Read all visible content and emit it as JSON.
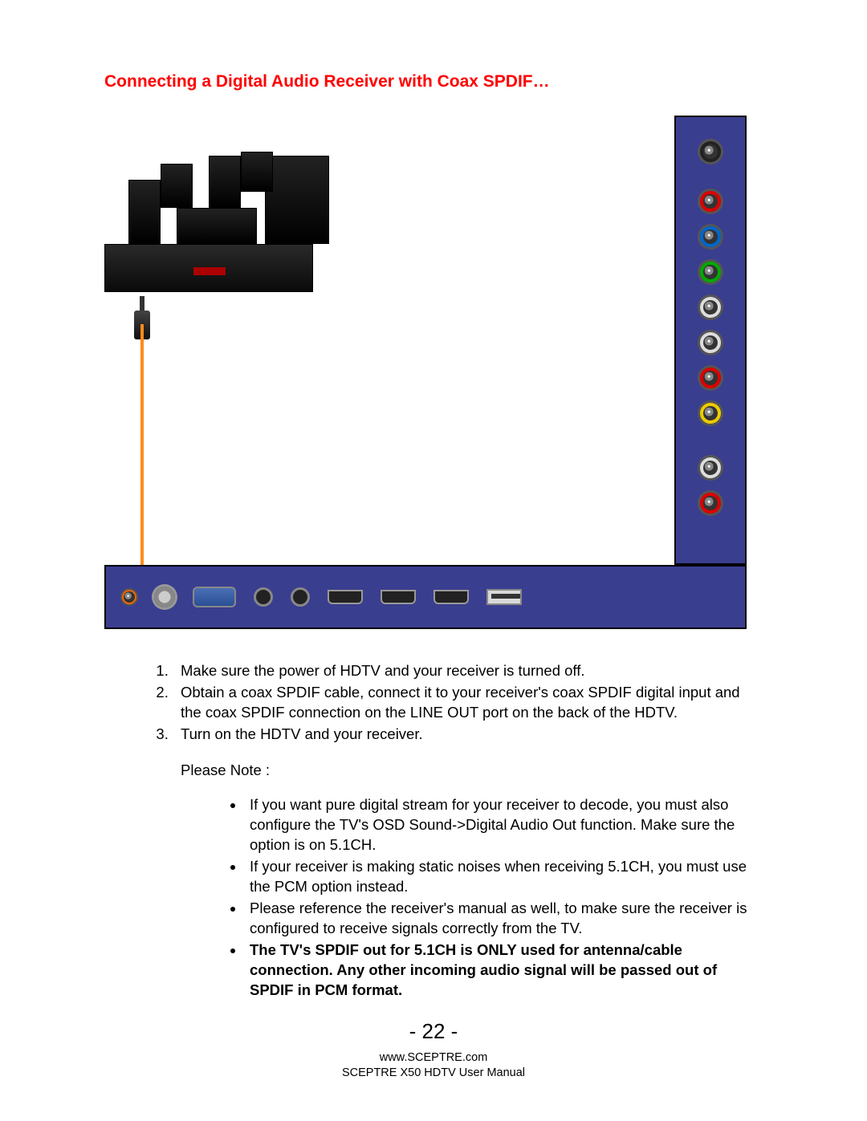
{
  "title": "Connecting a Digital Audio Receiver with Coax SPDIF…",
  "diagram": {
    "side_ports": [
      {
        "type": "jack",
        "color": "black"
      },
      {
        "type": "jack",
        "color": "red"
      },
      {
        "type": "jack",
        "color": "blue"
      },
      {
        "type": "jack",
        "color": "green"
      },
      {
        "type": "jack",
        "color": "white"
      },
      {
        "type": "jack",
        "color": "white"
      },
      {
        "type": "jack",
        "color": "red"
      },
      {
        "type": "jack",
        "color": "yellow"
      },
      {
        "type": "jack",
        "color": "white"
      },
      {
        "type": "jack",
        "color": "red"
      }
    ],
    "bottom_ports": [
      {
        "type": "jack-small-orange"
      },
      {
        "type": "coax"
      },
      {
        "type": "vga"
      },
      {
        "type": "svideo"
      },
      {
        "type": "svideo"
      },
      {
        "type": "hdmi"
      },
      {
        "type": "hdmi"
      },
      {
        "type": "hdmi"
      },
      {
        "type": "usb"
      }
    ],
    "cable_color": "#ff8c1a",
    "panel_color": "#3a3e8f"
  },
  "steps": [
    "Make sure the power of HDTV and your receiver is turned off.",
    "Obtain a coax SPDIF cable, connect it to your receiver's coax SPDIF digital input and the coax SPDIF connection on the LINE OUT port on the back of the HDTV.",
    "Turn on the HDTV and your receiver."
  ],
  "note_label": "Please Note :",
  "notes": [
    {
      "text": "If you want pure digital stream for your receiver to decode, you must also configure the TV's OSD Sound->Digital Audio Out function. Make sure the option is on 5.1CH.",
      "bold": false
    },
    {
      "text": "If your receiver is making static noises when receiving 5.1CH, you must use the PCM option instead.",
      "bold": false
    },
    {
      "text": "Please reference the receiver's manual as well, to make sure the receiver is configured to receive signals correctly from the TV.",
      "bold": false
    },
    {
      "text": "The TV's SPDIF out for 5.1CH is ONLY used for antenna/cable connection.  Any other incoming audio signal will be passed out of SPDIF in PCM format.",
      "bold": true
    }
  ],
  "page_number": "- 22 -",
  "footer_url": "www.SCEPTRE.com",
  "footer_text": "SCEPTRE X50 HDTV User Manual"
}
